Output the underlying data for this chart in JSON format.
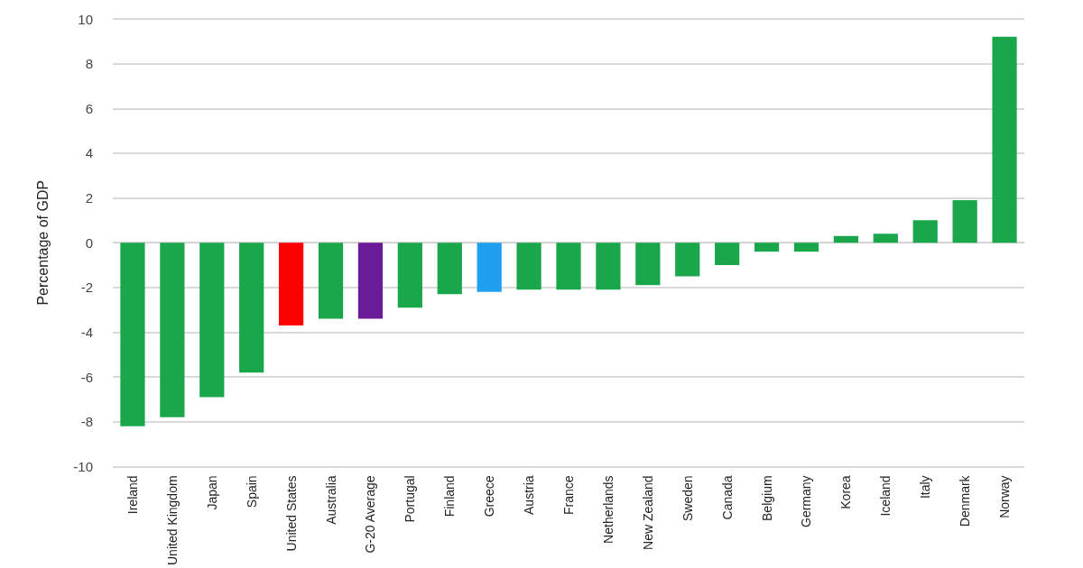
{
  "chart_data": {
    "type": "bar",
    "ylabel": "Percentage of GDP",
    "categories": [
      "Ireland",
      "United Kingdom",
      "Japan",
      "Spain",
      "United States",
      "Australia",
      "G-20 Average",
      "Portugal",
      "Finland",
      "Greece",
      "Austria",
      "France",
      "Netherlands",
      "New Zealand",
      "Sweden",
      "Canada",
      "Belgium",
      "Germany",
      "Korea",
      "Iceland",
      "Italy",
      "Denmark",
      "Norway"
    ],
    "values": [
      -8.2,
      -7.8,
      -6.9,
      -5.8,
      -3.7,
      -3.4,
      -3.4,
      -2.9,
      -2.3,
      -2.2,
      -2.1,
      -2.1,
      -2.1,
      -1.9,
      -1.5,
      -1.0,
      -0.4,
      -0.4,
      0.3,
      0.4,
      1.0,
      1.9,
      9.2
    ],
    "colors": [
      "#1aa64a",
      "#1aa64a",
      "#1aa64a",
      "#1aa64a",
      "#ff0000",
      "#1aa64a",
      "#6a1b9a",
      "#1aa64a",
      "#1aa64a",
      "#1e9ff0",
      "#1aa64a",
      "#1aa64a",
      "#1aa64a",
      "#1aa64a",
      "#1aa64a",
      "#1aa64a",
      "#1aa64a",
      "#1aa64a",
      "#1aa64a",
      "#1aa64a",
      "#1aa64a",
      "#1aa64a",
      "#1aa64a"
    ],
    "ylim": [
      -10,
      10
    ],
    "yticks": [
      -10,
      -8,
      -6,
      -4,
      -2,
      0,
      2,
      4,
      6,
      8,
      10
    ],
    "grid": "y"
  }
}
